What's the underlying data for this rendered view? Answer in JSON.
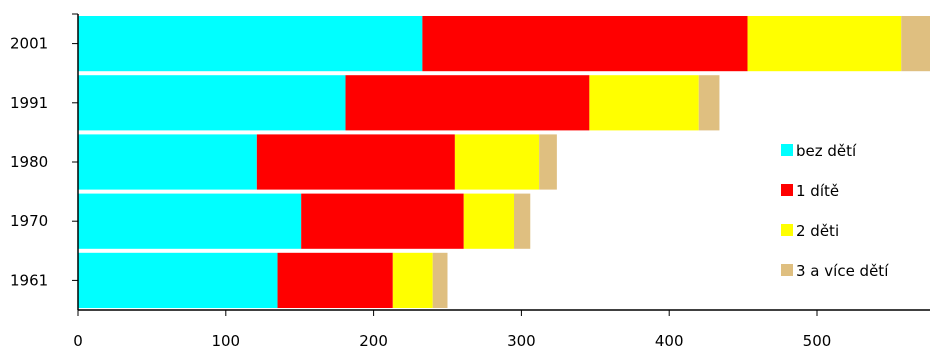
{
  "chart_data": {
    "type": "bar",
    "orientation": "horizontal",
    "stacked": true,
    "title": "",
    "xlabel": "",
    "ylabel": "",
    "categories": [
      "2001",
      "1991",
      "1980",
      "1970",
      "1961"
    ],
    "series": [
      {
        "name": "bez dětí",
        "color": "#00ffff",
        "values": [
          233,
          181,
          121,
          151,
          135
        ]
      },
      {
        "name": "1 dítě",
        "color": "#ff0000",
        "values": [
          220,
          165,
          134,
          110,
          78
        ]
      },
      {
        "name": "2 děti",
        "color": "#ffff00",
        "values": [
          104,
          74,
          57,
          34,
          27
        ]
      },
      {
        "name": "3 a více dětí",
        "color": "#dfbf80",
        "values": [
          21,
          14,
          12,
          11,
          10
        ]
      }
    ],
    "xlim": [
      0,
      578
    ],
    "xticks": [
      0,
      100,
      200,
      300,
      400,
      500
    ],
    "grid": false,
    "legend_position": "right"
  }
}
